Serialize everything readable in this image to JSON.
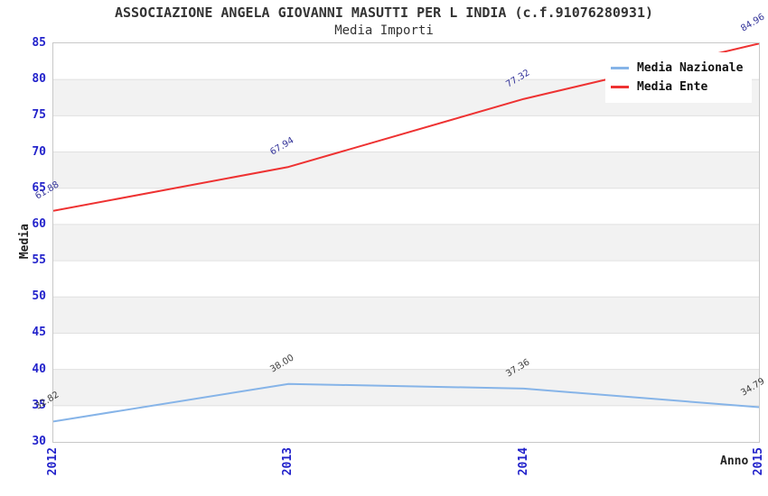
{
  "title": "ASSOCIAZIONE ANGELA GIOVANNI MASUTTI PER L INDIA (c.f.91076280931)",
  "subtitle": "Media Importi",
  "colors": {
    "tick_label": "#2323cb",
    "title_text": "#333333",
    "axis_title_text": "#222222",
    "plot_border": "#c8c8c8",
    "band_gray": "#f2f2f2",
    "band_white": "#ffffff",
    "gridline": "#e0e0e0",
    "legend_background": "#ffffff"
  },
  "chart_data": {
    "type": "line",
    "title": "ASSOCIAZIONE ANGELA GIOVANNI MASUTTI PER L INDIA (c.f.91076280931)",
    "subtitle": "Media Importi",
    "xlabel": "Anno",
    "ylabel": "Media",
    "categories": [
      "2012",
      "2013",
      "2014",
      "2015"
    ],
    "series": [
      {
        "name": "Media Nazionale",
        "color": "#86b4e8",
        "label_color": "#3d3d3d",
        "values": [
          32.82,
          38.0,
          37.36,
          34.79
        ],
        "labels": [
          "32.82",
          "38.00",
          "37.36",
          "34.79"
        ]
      },
      {
        "name": "Media Ente",
        "color": "#ee3232",
        "label_color": "#333399",
        "values": [
          61.88,
          67.94,
          77.32,
          84.96
        ],
        "labels": [
          "61.88",
          "67.94",
          "77.32",
          "84.96"
        ]
      }
    ],
    "ylim": [
      30,
      85
    ],
    "y_ticks": [
      85,
      80,
      75,
      70,
      65,
      60,
      55,
      50,
      45,
      40,
      35,
      30
    ],
    "grid": "horizontal-bands",
    "legend_position": "top-right"
  }
}
